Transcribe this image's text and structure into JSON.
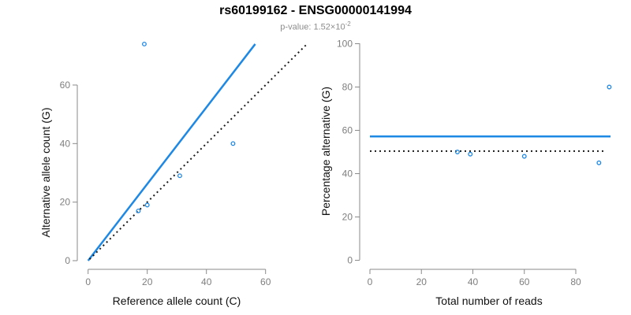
{
  "header": {
    "title": "rs60199162 - ENSG00000141994",
    "subtitle_prefix": "p-value: 1.52×10",
    "subtitle_exponent": "-2"
  },
  "colors": {
    "accent_blue": "#1E88E5",
    "dotted_black": "#1a1a1a",
    "axis_gray": "#8a8a8a",
    "tick_label_gray": "#7e7e7e",
    "title_black": "#000000",
    "subtitle_gray": "#8c8c8c"
  },
  "chart_data": [
    {
      "type": "scatter",
      "panel": "left",
      "xlabel": "Reference allele count (C)",
      "ylabel": "Alternative allele count (G)",
      "xticks": [
        0,
        20,
        40,
        60
      ],
      "yticks": [
        0,
        20,
        40,
        60
      ],
      "xlim": [
        0,
        74
      ],
      "ylim": [
        0,
        74
      ],
      "grid": false,
      "points": [
        [
          17,
          17
        ],
        [
          20,
          19
        ],
        [
          31,
          29
        ],
        [
          49,
          40
        ],
        [
          19,
          74
        ]
      ],
      "lines": [
        {
          "name": "fit-line",
          "style": "solid",
          "color": "accent_blue",
          "x1": 0,
          "y1": 0,
          "x2": 56.5,
          "y2": 74
        },
        {
          "name": "identity-line",
          "style": "dotted",
          "color": "dotted_black",
          "x1": 0.5,
          "y1": 0.5,
          "x2": 74,
          "y2": 74
        }
      ]
    },
    {
      "type": "scatter",
      "panel": "right",
      "xlabel": "Total number of reads",
      "ylabel": "Percentage alternative (G)",
      "xticks": [
        0,
        20,
        40,
        60,
        80
      ],
      "yticks": [
        0,
        20,
        40,
        60,
        80,
        100
      ],
      "xlim": [
        0,
        93.5
      ],
      "ylim": [
        0,
        100
      ],
      "grid": false,
      "points": [
        [
          34,
          50
        ],
        [
          39,
          49
        ],
        [
          60,
          48
        ],
        [
          89,
          45
        ],
        [
          93,
          80
        ]
      ],
      "lines": [
        {
          "name": "mean-percentage-line",
          "style": "solid",
          "color": "accent_blue",
          "x1": 0,
          "y1": 57.2,
          "x2": 93.5,
          "y2": 57.2
        },
        {
          "name": "expected-50pct-line",
          "style": "dotted",
          "color": "dotted_black",
          "x1": 0,
          "y1": 50.4,
          "x2": 91,
          "y2": 50.4
        }
      ]
    }
  ]
}
